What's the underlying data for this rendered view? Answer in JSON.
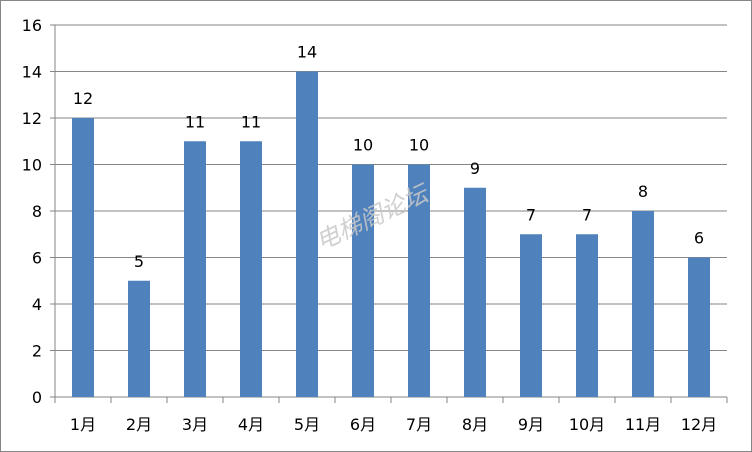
{
  "chart_data": {
    "type": "bar",
    "title": "",
    "xlabel": "",
    "ylabel": "",
    "categories": [
      "1月",
      "2月",
      "3月",
      "4月",
      "5月",
      "6月",
      "7月",
      "8月",
      "9月",
      "10月",
      "11月",
      "12月"
    ],
    "values": [
      12,
      5,
      11,
      11,
      14,
      10,
      10,
      9,
      7,
      7,
      8,
      6
    ],
    "ylim": [
      0,
      16
    ],
    "yticks": [
      0,
      2,
      4,
      6,
      8,
      10,
      12,
      14,
      16
    ],
    "grid": true,
    "legend": "none",
    "data_labels": true,
    "bar_color": "#4F81BD",
    "grid_color": "#868686",
    "watermark": "电梯阁论坛"
  }
}
